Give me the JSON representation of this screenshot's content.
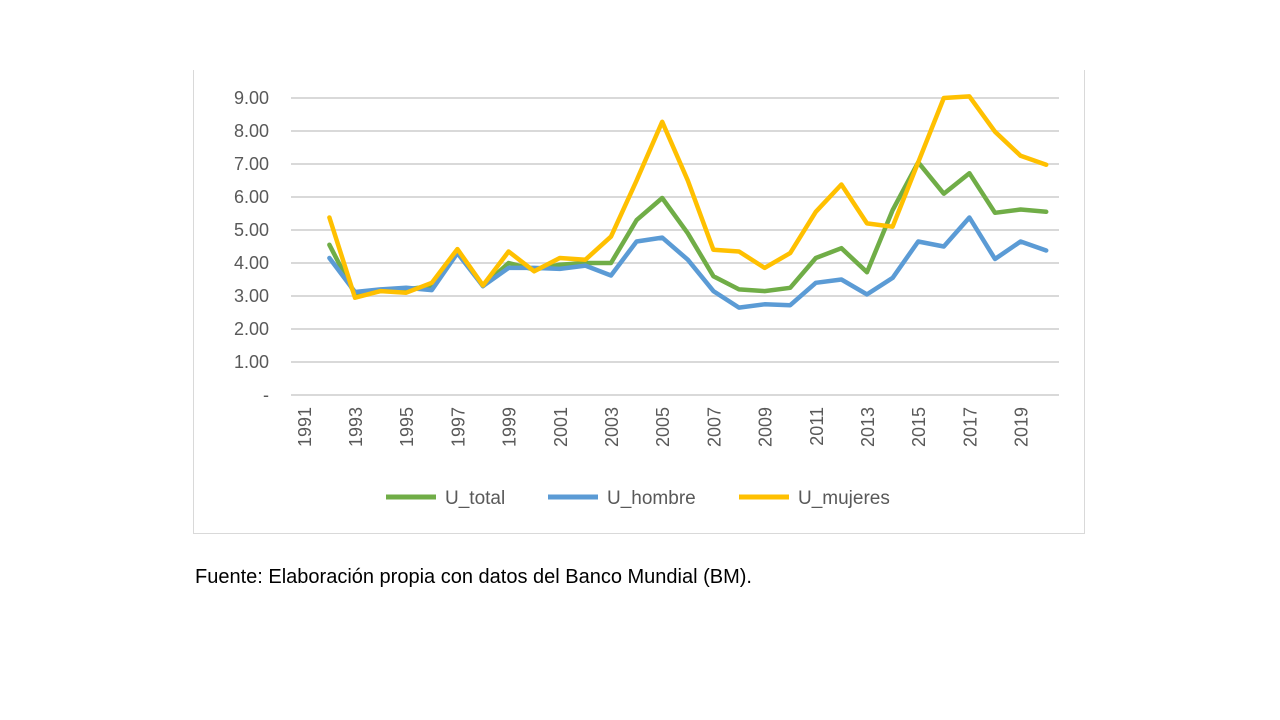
{
  "chart_data": {
    "type": "line",
    "title": "",
    "xlabel": "",
    "ylabel": "",
    "x": [
      1991,
      1992,
      1993,
      1994,
      1995,
      1996,
      1997,
      1998,
      1999,
      2000,
      2001,
      2002,
      2003,
      2004,
      2005,
      2006,
      2007,
      2008,
      2009,
      2010,
      2011,
      2012,
      2013,
      2014,
      2015,
      2016,
      2017,
      2018,
      2019,
      2020
    ],
    "x_tick_labels": [
      "1991",
      "1993",
      "1995",
      "1997",
      "1999",
      "2001",
      "2003",
      "2005",
      "2007",
      "2009",
      "2011",
      "2013",
      "2015",
      "2017",
      "2019"
    ],
    "y_tick_labels": [
      "-",
      "1.00",
      "2.00",
      "3.00",
      "4.00",
      "5.00",
      "6.00",
      "7.00",
      "8.00",
      "9.00"
    ],
    "ylim": [
      0,
      9
    ],
    "grid": "horizontal",
    "legend": "bottom",
    "series": [
      {
        "name": "U_total",
        "color": "#70ad47",
        "values": [
          null,
          4.55,
          3.05,
          3.15,
          3.2,
          3.3,
          4.35,
          3.3,
          4.0,
          3.8,
          3.95,
          4.0,
          4.0,
          5.3,
          5.97,
          4.9,
          3.6,
          3.2,
          3.15,
          3.25,
          4.15,
          4.45,
          3.72,
          5.6,
          7.05,
          6.1,
          6.72,
          5.52,
          5.62,
          5.55
        ]
      },
      {
        "name": "U_hombre",
        "color": "#5b9bd5",
        "values": [
          null,
          4.15,
          3.12,
          3.2,
          3.25,
          3.18,
          4.3,
          3.3,
          3.85,
          3.85,
          3.82,
          3.92,
          3.62,
          4.65,
          4.77,
          4.1,
          3.15,
          2.65,
          2.75,
          2.72,
          3.4,
          3.5,
          3.05,
          3.55,
          4.65,
          4.5,
          5.38,
          4.12,
          4.65,
          4.38
        ]
      },
      {
        "name": "U_mujeres",
        "color": "#ffc000",
        "values": [
          null,
          5.38,
          2.95,
          3.15,
          3.1,
          3.4,
          4.42,
          3.32,
          4.35,
          3.75,
          4.15,
          4.1,
          4.8,
          6.5,
          8.28,
          6.5,
          4.4,
          4.35,
          3.85,
          4.3,
          5.55,
          6.38,
          5.2,
          5.1,
          7.05,
          9.0,
          9.05,
          7.98,
          7.25,
          6.98
        ]
      }
    ]
  },
  "footer": {
    "source": "Fuente: Elaboración propia con datos del Banco Mundial (BM)."
  }
}
